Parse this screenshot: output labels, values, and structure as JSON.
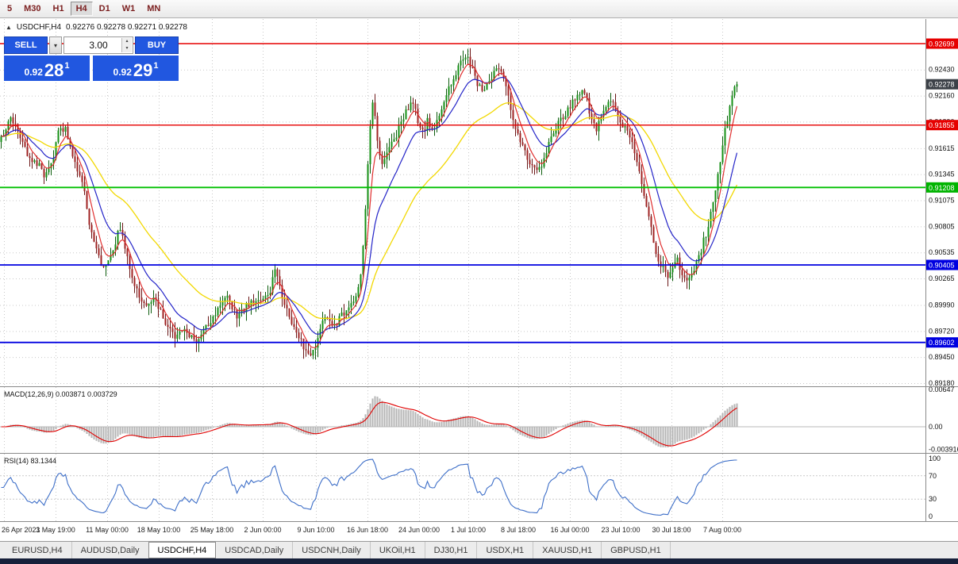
{
  "toolbar": {
    "timeframes": [
      {
        "label": "5",
        "active": false
      },
      {
        "label": "M30",
        "active": false
      },
      {
        "label": "H1",
        "active": false
      },
      {
        "label": "H4",
        "active": true
      },
      {
        "label": "D1",
        "active": false
      },
      {
        "label": "W1",
        "active": false
      },
      {
        "label": "MN",
        "active": false
      }
    ]
  },
  "header": {
    "symbol_period": "USDCHF,H4",
    "ohlc": "0.92276 0.92278 0.92271 0.92278"
  },
  "trade_panel": {
    "sell_label": "SELL",
    "buy_label": "BUY",
    "volume": "3.00",
    "sell_price": {
      "base": "0.92",
      "pips": "28",
      "sup": "1"
    },
    "buy_price": {
      "base": "0.92",
      "pips": "29",
      "sup": "1"
    }
  },
  "tabs": {
    "items": [
      "EURUSD,H4",
      "AUDUSD,Daily",
      "USDCHF,H4",
      "USDCAD,Daily",
      "USDCNH,Daily",
      "UKOil,H1",
      "DJ30,H1",
      "USDX,H1",
      "XAUUSD,H1",
      "GBPUSD,H1"
    ],
    "active_index": 2
  },
  "chart_data": {
    "type": "candlestick",
    "symbol": "USDCHF",
    "period": "H4",
    "current_price": 0.92278,
    "ylim": [
      0.89147,
      0.92954
    ],
    "price_ticks": [
      0.9243,
      0.9216,
      0.9189,
      0.91615,
      0.91345,
      0.91075,
      0.90805,
      0.90535,
      0.90265,
      0.8999,
      0.8972,
      0.8945,
      0.8918
    ],
    "hlines": [
      {
        "value": 0.92699,
        "color": "#e60000",
        "width": 1.4
      },
      {
        "value": 0.91855,
        "color": "#e60000",
        "width": 1.4
      },
      {
        "value": 0.91208,
        "color": "#00c000",
        "width": 1.8
      },
      {
        "value": 0.90405,
        "color": "#0000e0",
        "width": 1.8
      },
      {
        "value": 0.89602,
        "color": "#0000e0",
        "width": 1.8
      }
    ],
    "badges": [
      {
        "value": "0.92699",
        "color": "#e60000"
      },
      {
        "value": "0.92278",
        "color": "#3c4148"
      },
      {
        "value": "0.91855",
        "color": "#e60000"
      },
      {
        "value": "0.91208",
        "color": "#00b400"
      },
      {
        "value": "0.90405",
        "color": "#0000e0"
      },
      {
        "value": "0.89602",
        "color": "#0000e0"
      }
    ],
    "time_ticks": [
      {
        "x": 5,
        "label": "26 Apr 2021"
      },
      {
        "x": 70,
        "label": "3 May 19:00"
      },
      {
        "x": 135,
        "label": "11 May 00:00"
      },
      {
        "x": 200,
        "label": "18 May 10:00"
      },
      {
        "x": 267,
        "label": "25 May 18:00"
      },
      {
        "x": 331,
        "label": "2 Jun 00:00"
      },
      {
        "x": 398,
        "label": "9 Jun 10:00"
      },
      {
        "x": 463,
        "label": "16 Jun 18:00"
      },
      {
        "x": 528,
        "label": "24 Jun 00:00"
      },
      {
        "x": 590,
        "label": "1 Jul 10:00"
      },
      {
        "x": 653,
        "label": "8 Jul 18:00"
      },
      {
        "x": 718,
        "label": "16 Jul 00:00"
      },
      {
        "x": 782,
        "label": "23 Jul 10:00"
      },
      {
        "x": 846,
        "label": "30 Jul 18:00"
      },
      {
        "x": 910,
        "label": "7 Aug 00:00"
      }
    ],
    "price_path": [
      [
        0,
        0.9168
      ],
      [
        8,
        0.9185
      ],
      [
        14,
        0.9196
      ],
      [
        22,
        0.9178
      ],
      [
        30,
        0.9162
      ],
      [
        40,
        0.915
      ],
      [
        50,
        0.9142
      ],
      [
        58,
        0.9132
      ],
      [
        66,
        0.9148
      ],
      [
        74,
        0.9178
      ],
      [
        82,
        0.9182
      ],
      [
        90,
        0.916
      ],
      [
        98,
        0.9138
      ],
      [
        106,
        0.9118
      ],
      [
        112,
        0.9085
      ],
      [
        120,
        0.9058
      ],
      [
        128,
        0.9038
      ],
      [
        136,
        0.9042
      ],
      [
        144,
        0.906
      ],
      [
        150,
        0.9082
      ],
      [
        158,
        0.9055
      ],
      [
        166,
        0.9028
      ],
      [
        174,
        0.9012
      ],
      [
        182,
        0.8998
      ],
      [
        190,
        0.9005
      ],
      [
        198,
        0.9002
      ],
      [
        206,
        0.8985
      ],
      [
        214,
        0.8972
      ],
      [
        222,
        0.8964
      ],
      [
        230,
        0.8975
      ],
      [
        238,
        0.8968
      ],
      [
        246,
        0.896
      ],
      [
        254,
        0.8972
      ],
      [
        262,
        0.8978
      ],
      [
        270,
        0.8985
      ],
      [
        278,
        0.9002
      ],
      [
        286,
        0.9008
      ],
      [
        292,
        0.8996
      ],
      [
        300,
        0.8986
      ],
      [
        308,
        0.8996
      ],
      [
        316,
        0.9002
      ],
      [
        324,
        0.9006
      ],
      [
        332,
        0.9002
      ],
      [
        340,
        0.9012
      ],
      [
        347,
        0.9038
      ],
      [
        352,
        0.902
      ],
      [
        358,
        0.8998
      ],
      [
        366,
        0.8984
      ],
      [
        374,
        0.8972
      ],
      [
        382,
        0.8955
      ],
      [
        390,
        0.8945
      ],
      [
        396,
        0.8952
      ],
      [
        402,
        0.8972
      ],
      [
        410,
        0.8985
      ],
      [
        418,
        0.8978
      ],
      [
        426,
        0.8982
      ],
      [
        434,
        0.8992
      ],
      [
        442,
        0.9
      ],
      [
        450,
        0.9008
      ],
      [
        455,
        0.903
      ],
      [
        459,
        0.908
      ],
      [
        463,
        0.914
      ],
      [
        467,
        0.9195
      ],
      [
        470,
        0.9215
      ],
      [
        474,
        0.9185
      ],
      [
        478,
        0.9152
      ],
      [
        482,
        0.914
      ],
      [
        487,
        0.9155
      ],
      [
        494,
        0.9168
      ],
      [
        501,
        0.9178
      ],
      [
        508,
        0.9192
      ],
      [
        515,
        0.9205
      ],
      [
        521,
        0.9212
      ],
      [
        527,
        0.9185
      ],
      [
        533,
        0.9178
      ],
      [
        539,
        0.919
      ],
      [
        545,
        0.918
      ],
      [
        551,
        0.9192
      ],
      [
        558,
        0.9208
      ],
      [
        565,
        0.9222
      ],
      [
        572,
        0.9235
      ],
      [
        579,
        0.9248
      ],
      [
        586,
        0.926
      ],
      [
        591,
        0.9252
      ],
      [
        597,
        0.9238
      ],
      [
        603,
        0.9225
      ],
      [
        609,
        0.9222
      ],
      [
        615,
        0.9232
      ],
      [
        621,
        0.9238
      ],
      [
        628,
        0.9248
      ],
      [
        634,
        0.9235
      ],
      [
        640,
        0.9215
      ],
      [
        646,
        0.9195
      ],
      [
        652,
        0.9178
      ],
      [
        658,
        0.9165
      ],
      [
        664,
        0.9152
      ],
      [
        670,
        0.9145
      ],
      [
        676,
        0.914
      ],
      [
        682,
        0.9142
      ],
      [
        688,
        0.9155
      ],
      [
        694,
        0.9172
      ],
      [
        700,
        0.9182
      ],
      [
        706,
        0.919
      ],
      [
        712,
        0.9198
      ],
      [
        718,
        0.9205
      ],
      [
        724,
        0.921
      ],
      [
        730,
        0.9216
      ],
      [
        736,
        0.9222
      ],
      [
        741,
        0.9205
      ],
      [
        746,
        0.9188
      ],
      [
        752,
        0.9182
      ],
      [
        758,
        0.9192
      ],
      [
        764,
        0.9205
      ],
      [
        770,
        0.9212
      ],
      [
        776,
        0.92
      ],
      [
        782,
        0.9188
      ],
      [
        788,
        0.9182
      ],
      [
        794,
        0.9172
      ],
      [
        800,
        0.9158
      ],
      [
        806,
        0.9135
      ],
      [
        812,
        0.9112
      ],
      [
        818,
        0.9088
      ],
      [
        824,
        0.9062
      ],
      [
        830,
        0.9045
      ],
      [
        836,
        0.9035
      ],
      [
        842,
        0.903
      ],
      [
        848,
        0.9038
      ],
      [
        854,
        0.9045
      ],
      [
        860,
        0.9028
      ],
      [
        866,
        0.902
      ],
      [
        872,
        0.903
      ],
      [
        878,
        0.9048
      ],
      [
        884,
        0.9058
      ],
      [
        890,
        0.9075
      ],
      [
        896,
        0.9095
      ],
      [
        902,
        0.9122
      ],
      [
        908,
        0.9152
      ],
      [
        914,
        0.9182
      ],
      [
        920,
        0.9205
      ],
      [
        925,
        0.9222
      ],
      [
        930,
        0.92278
      ]
    ],
    "macd": {
      "label": "MACD(12,26,9)",
      "values": "0.003871 0.003729",
      "axis": [
        "0.00647",
        "0.00",
        "-0.003916"
      ],
      "ylim": [
        -0.00455,
        0.0069
      ]
    },
    "rsi": {
      "label": "RSI(14)",
      "value": "83.1344",
      "axis": [
        100,
        70,
        30,
        0
      ],
      "levels": [
        70,
        30
      ]
    },
    "colors": {
      "up": "#169016",
      "down": "#a02323",
      "wick_up": "#0c5c0c",
      "wick_down": "#6b1717",
      "ma_slow": "#f2d800",
      "ma_mid": "#2424c8",
      "ma_fast": "#e03030",
      "macd_hist": "#b5b5b5",
      "macd_signal": "#e00000",
      "rsi": "#3e6fc8",
      "grid": "#c9c9c9"
    }
  }
}
